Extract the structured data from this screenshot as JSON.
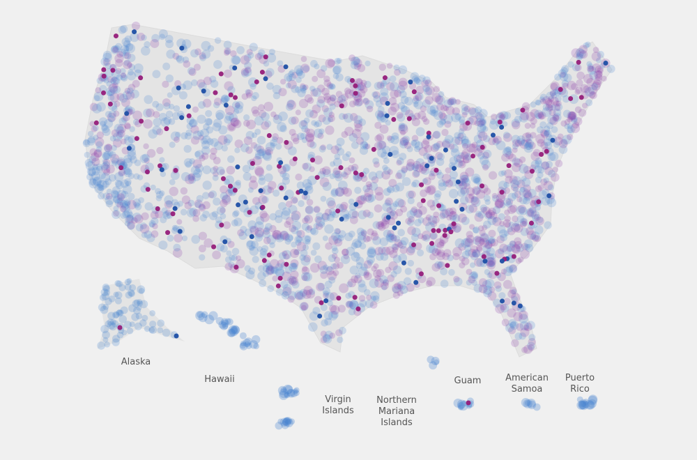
{
  "labels": [
    "Alaska",
    "Hawaii",
    "Virgin Islands",
    "Northern Mariana Islands",
    "Guam",
    "American Samoa",
    "Puerto Rico"
  ]
}
